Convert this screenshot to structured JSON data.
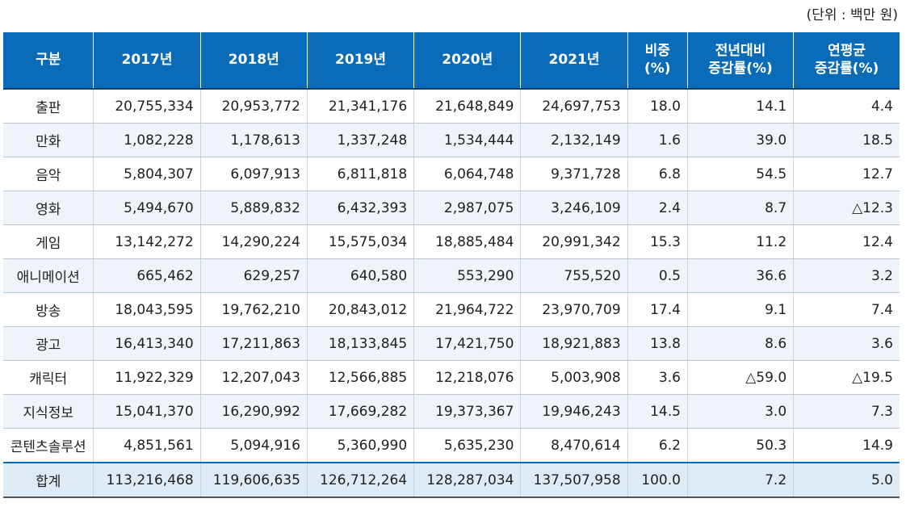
{
  "unit_label": "(단위 : 백만 원)",
  "headers": {
    "category": "구분",
    "y2017": "2017년",
    "y2018": "2018년",
    "y2019": "2019년",
    "y2020": "2020년",
    "y2021": "2021년",
    "share_line1": "비중",
    "share_line2": "(%)",
    "yoy_line1": "전년대비",
    "yoy_line2": "증감률(%)",
    "cagr_line1": "연평균",
    "cagr_line2": "증감률(%)"
  },
  "rows": [
    {
      "name": "출판",
      "y2017": "20,755,334",
      "y2018": "20,953,772",
      "y2019": "21,341,176",
      "y2020": "21,648,849",
      "y2021": "24,697,753",
      "share": "18.0",
      "yoy": "14.1",
      "cagr": "4.4"
    },
    {
      "name": "만화",
      "y2017": "1,082,228",
      "y2018": "1,178,613",
      "y2019": "1,337,248",
      "y2020": "1,534,444",
      "y2021": "2,132,149",
      "share": "1.6",
      "yoy": "39.0",
      "cagr": "18.5"
    },
    {
      "name": "음악",
      "y2017": "5,804,307",
      "y2018": "6,097,913",
      "y2019": "6,811,818",
      "y2020": "6,064,748",
      "y2021": "9,371,728",
      "share": "6.8",
      "yoy": "54.5",
      "cagr": "12.7"
    },
    {
      "name": "영화",
      "y2017": "5,494,670",
      "y2018": "5,889,832",
      "y2019": "6,432,393",
      "y2020": "2,987,075",
      "y2021": "3,246,109",
      "share": "2.4",
      "yoy": "8.7",
      "cagr": "△12.3"
    },
    {
      "name": "게임",
      "y2017": "13,142,272",
      "y2018": "14,290,224",
      "y2019": "15,575,034",
      "y2020": "18,885,484",
      "y2021": "20,991,342",
      "share": "15.3",
      "yoy": "11.2",
      "cagr": "12.4"
    },
    {
      "name": "애니메이션",
      "y2017": "665,462",
      "y2018": "629,257",
      "y2019": "640,580",
      "y2020": "553,290",
      "y2021": "755,520",
      "share": "0.5",
      "yoy": "36.6",
      "cagr": "3.2"
    },
    {
      "name": "방송",
      "y2017": "18,043,595",
      "y2018": "19,762,210",
      "y2019": "20,843,012",
      "y2020": "21,964,722",
      "y2021": "23,970,709",
      "share": "17.4",
      "yoy": "9.1",
      "cagr": "7.4"
    },
    {
      "name": "광고",
      "y2017": "16,413,340",
      "y2018": "17,211,863",
      "y2019": "18,133,845",
      "y2020": "17,421,750",
      "y2021": "18,921,883",
      "share": "13.8",
      "yoy": "8.6",
      "cagr": "3.6"
    },
    {
      "name": "캐릭터",
      "y2017": "11,922,329",
      "y2018": "12,207,043",
      "y2019": "12,566,885",
      "y2020": "12,218,076",
      "y2021": "5,003,908",
      "share": "3.6",
      "yoy": "△59.0",
      "cagr": "△19.5"
    },
    {
      "name": "지식정보",
      "y2017": "15,041,370",
      "y2018": "16,290,992",
      "y2019": "17,669,282",
      "y2020": "19,373,367",
      "y2021": "19,946,243",
      "share": "14.5",
      "yoy": "3.0",
      "cagr": "7.3"
    },
    {
      "name": "콘텐츠솔루션",
      "y2017": "4,851,561",
      "y2018": "5,094,916",
      "y2019": "5,360,990",
      "y2020": "5,635,230",
      "y2021": "8,470,614",
      "share": "6.2",
      "yoy": "50.3",
      "cagr": "14.9"
    }
  ],
  "total": {
    "name": "합계",
    "y2017": "113,216,468",
    "y2018": "119,606,635",
    "y2019": "126,712,264",
    "y2020": "128,287,034",
    "y2021": "137,507,958",
    "share": "100.0",
    "yoy": "7.2",
    "cagr": "5.0"
  }
}
